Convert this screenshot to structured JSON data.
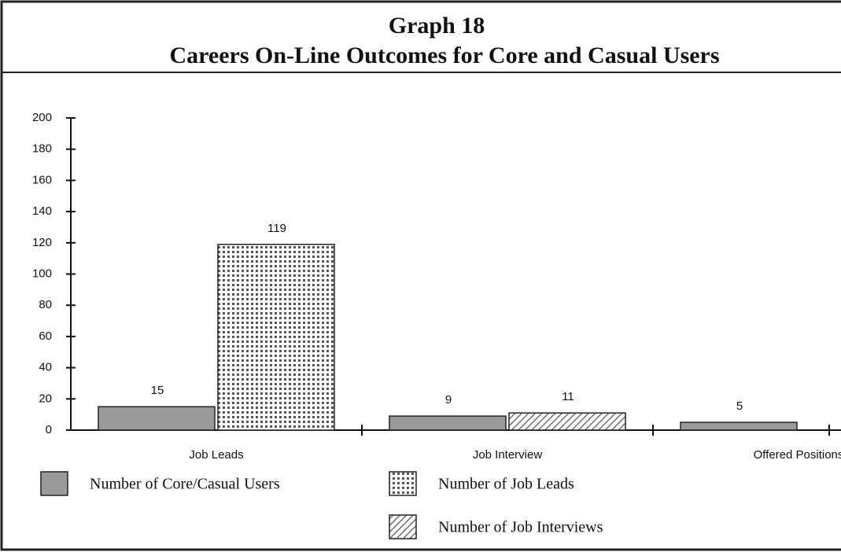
{
  "chart_data": {
    "type": "bar",
    "title": "Graph 18",
    "subtitle": "Careers On-Line Outcomes for Core and Casual Users",
    "categories": [
      "Job Leads",
      "Job Interview",
      "Offered Positions"
    ],
    "series": [
      {
        "name": "Number of Core/Casual Users",
        "color": "#9a9a9a",
        "values": [
          15,
          9,
          5
        ]
      },
      {
        "name": "Number of Job Leads",
        "color": "#555555",
        "pattern": "dots",
        "values": [
          119,
          null,
          null
        ]
      },
      {
        "name": "Number of Job Interviews",
        "color": "#555555",
        "pattern": "hatch",
        "values": [
          null,
          11,
          null
        ]
      }
    ],
    "ylim": [
      0,
      200
    ],
    "yticks": [
      0,
      20,
      40,
      60,
      80,
      100,
      120,
      140,
      160,
      180,
      200
    ],
    "grid": false
  }
}
